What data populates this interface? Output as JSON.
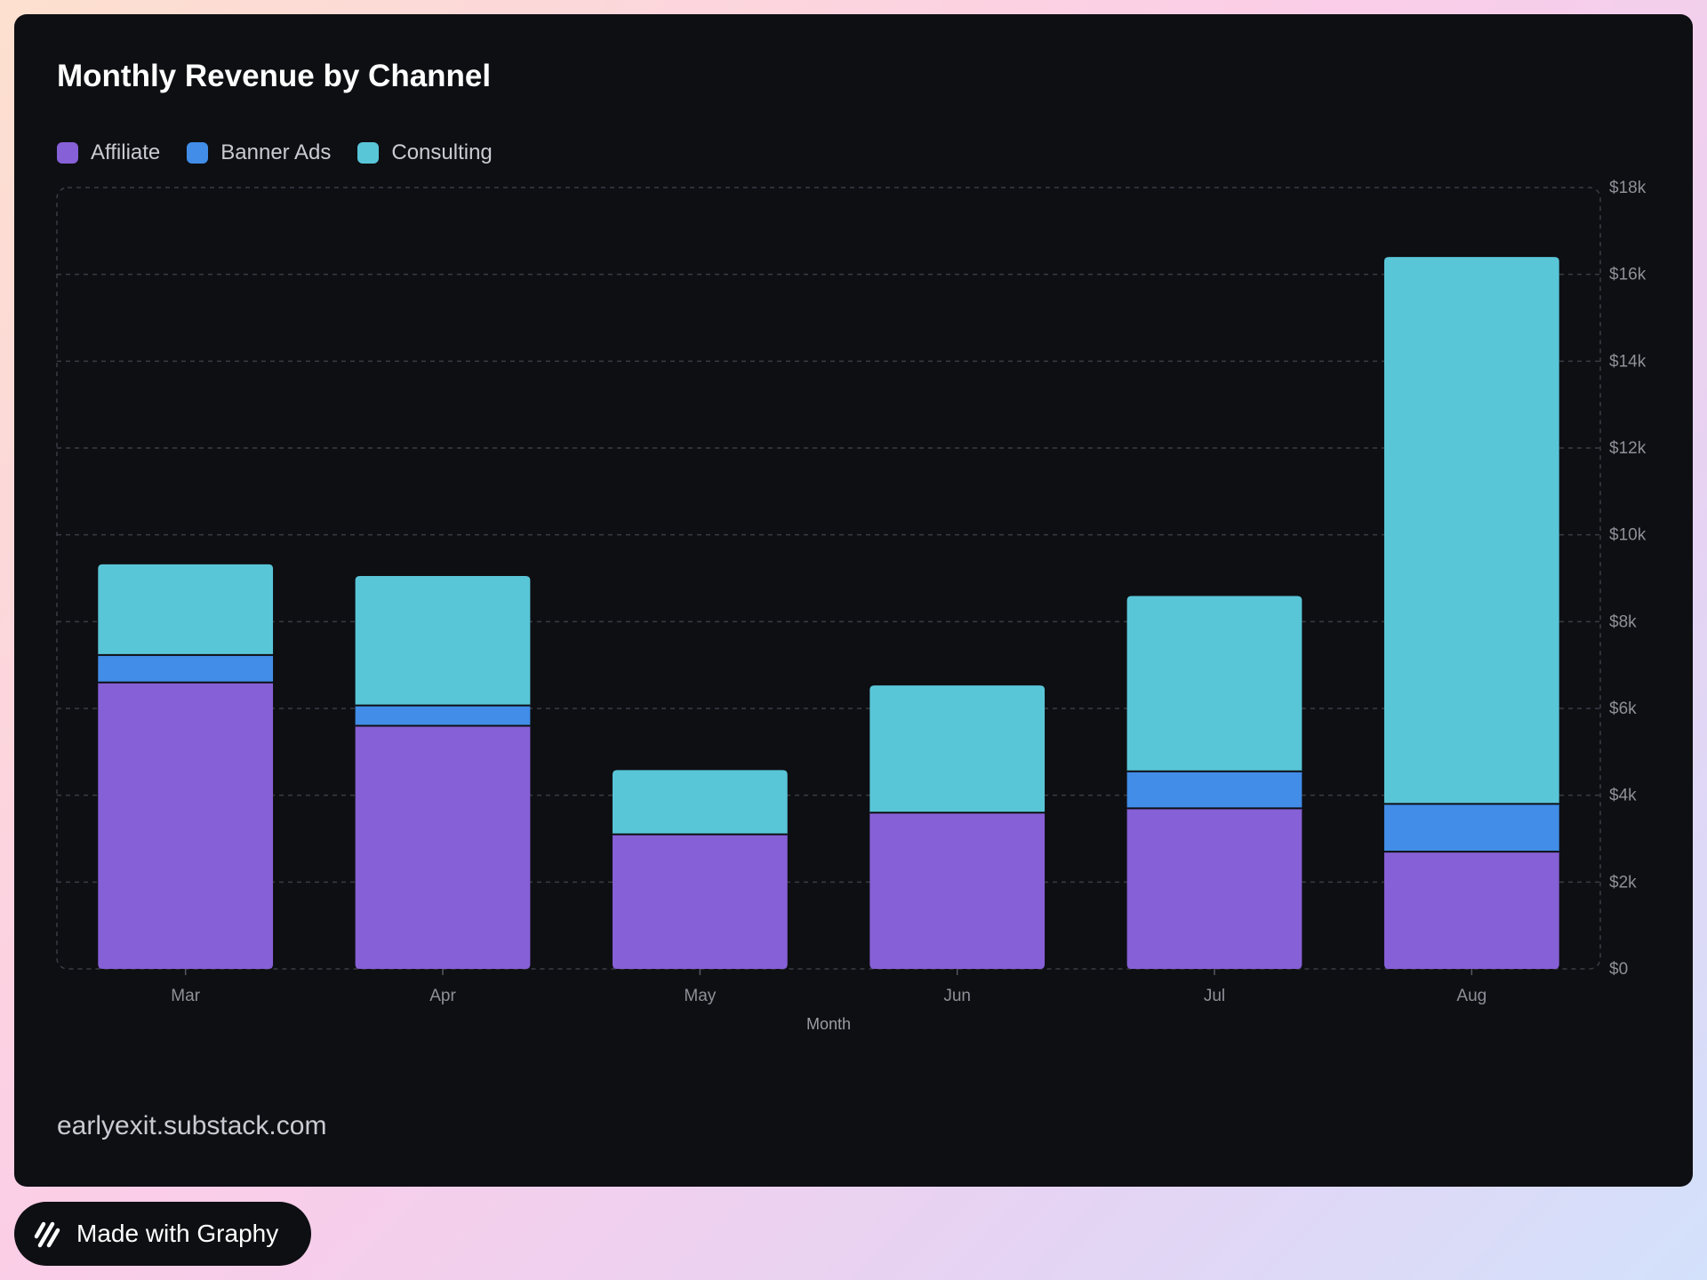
{
  "source_text": "earlyexit.substack.com",
  "badge": {
    "label": "Made with Graphy",
    "icon": "graphy-logo-icon"
  },
  "colors": {
    "background": "#0e0f13",
    "Affiliate": "#8660d6",
    "Banner Ads": "#418de8",
    "Consulting": "#59c6d8"
  },
  "chart_data": {
    "type": "bar",
    "stacked": true,
    "title": "Monthly Revenue by Channel",
    "xlabel": "Month",
    "ylabel": "",
    "categories": [
      "Mar",
      "Apr",
      "May",
      "Jun",
      "Jul",
      "Aug"
    ],
    "series": [
      {
        "name": "Affiliate",
        "values": [
          6600,
          5600,
          3100,
          3600,
          3700,
          2700
        ]
      },
      {
        "name": "Banner Ads",
        "values": [
          630,
          470,
          0,
          0,
          850,
          1100
        ]
      },
      {
        "name": "Consulting",
        "values": [
          2090,
          2980,
          1480,
          2930,
          4040,
          12600
        ]
      }
    ],
    "ylim": [
      0,
      18000
    ],
    "y_ticks": [
      "$0",
      "$2k",
      "$4k",
      "$6k",
      "$8k",
      "$10k",
      "$12k",
      "$14k",
      "$16k",
      "$18k"
    ],
    "y_tick_values": [
      0,
      2000,
      4000,
      6000,
      8000,
      10000,
      12000,
      14000,
      16000,
      18000
    ],
    "y_axis_position": "right",
    "grid": true,
    "legend_position": "top-left"
  }
}
